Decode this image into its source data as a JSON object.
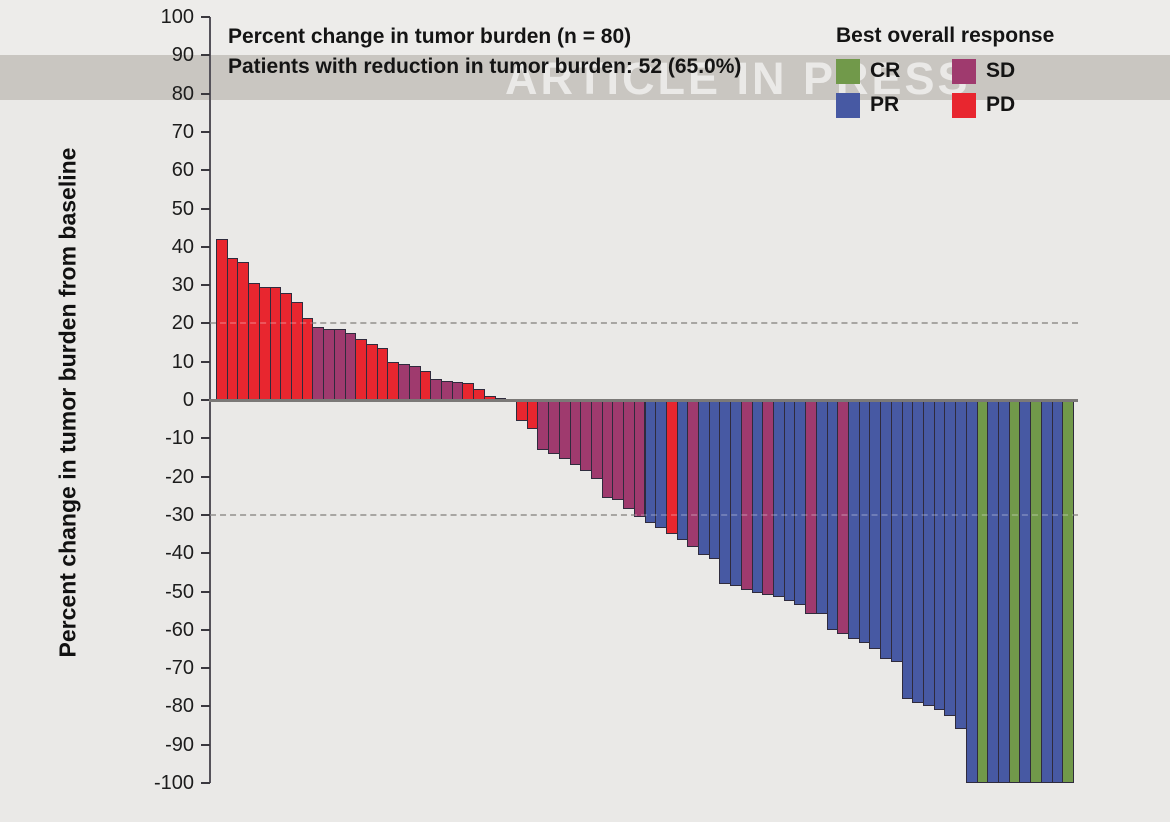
{
  "watermark": {
    "text": "ARTICLE IN PRESS"
  },
  "chart_data": {
    "type": "bar",
    "subtype": "waterfall",
    "title": "Percent change in tumor burden (n = 80)",
    "subtitle": "Patients with reduction in tumor burden: 52 (65.0%)",
    "ylabel": "Percent change in tumor burden from baseline",
    "ylim": [
      -100,
      100
    ],
    "yticks": [
      100,
      90,
      80,
      70,
      60,
      50,
      40,
      30,
      20,
      10,
      0,
      -10,
      -20,
      -30,
      -40,
      -50,
      -60,
      -70,
      -80,
      -90,
      -100
    ],
    "reference_lines": [
      20,
      -30
    ],
    "grid": false,
    "legend_title": "Best overall response",
    "legend_position": "top-right",
    "legend": [
      {
        "label": "CR",
        "color": "#71994a"
      },
      {
        "label": "PR",
        "color": "#4759a3"
      },
      {
        "label": "SD",
        "color": "#9f3a6e"
      },
      {
        "label": "PD",
        "color": "#e8262f"
      }
    ],
    "colors": {
      "CR": "#71994a",
      "PR": "#4759a3",
      "SD": "#9f3a6e",
      "PD": "#e8262f"
    },
    "bars": [
      {
        "v": 42,
        "r": "PD"
      },
      {
        "v": 37,
        "r": "PD"
      },
      {
        "v": 36,
        "r": "PD"
      },
      {
        "v": 30.5,
        "r": "PD"
      },
      {
        "v": 29.5,
        "r": "PD"
      },
      {
        "v": 29.5,
        "r": "PD"
      },
      {
        "v": 28,
        "r": "PD"
      },
      {
        "v": 25.5,
        "r": "PD"
      },
      {
        "v": 21.5,
        "r": "PD"
      },
      {
        "v": 19,
        "r": "SD"
      },
      {
        "v": 18.5,
        "r": "SD"
      },
      {
        "v": 18.5,
        "r": "SD"
      },
      {
        "v": 17.5,
        "r": "SD"
      },
      {
        "v": 16,
        "r": "PD"
      },
      {
        "v": 14.5,
        "r": "PD"
      },
      {
        "v": 13.5,
        "r": "PD"
      },
      {
        "v": 10,
        "r": "PD"
      },
      {
        "v": 9.5,
        "r": "SD"
      },
      {
        "v": 9,
        "r": "SD"
      },
      {
        "v": 7.5,
        "r": "PD"
      },
      {
        "v": 5.5,
        "r": "SD"
      },
      {
        "v": 5,
        "r": "SD"
      },
      {
        "v": 4.8,
        "r": "SD"
      },
      {
        "v": 4.5,
        "r": "PD"
      },
      {
        "v": 3,
        "r": "PD"
      },
      {
        "v": 1,
        "r": "PD"
      },
      {
        "v": 0.5,
        "r": "SD"
      },
      {
        "v": 0,
        "r": "SD"
      },
      {
        "v": -5.5,
        "r": "PD"
      },
      {
        "v": -7.5,
        "r": "PD"
      },
      {
        "v": -13,
        "r": "SD"
      },
      {
        "v": -14,
        "r": "SD"
      },
      {
        "v": -15.5,
        "r": "SD"
      },
      {
        "v": -17,
        "r": "SD"
      },
      {
        "v": -18.5,
        "r": "SD"
      },
      {
        "v": -20.5,
        "r": "SD"
      },
      {
        "v": -25.5,
        "r": "SD"
      },
      {
        "v": -26,
        "r": "SD"
      },
      {
        "v": -28.5,
        "r": "SD"
      },
      {
        "v": -30.5,
        "r": "SD"
      },
      {
        "v": -32,
        "r": "PR"
      },
      {
        "v": -33.5,
        "r": "PR"
      },
      {
        "v": -35,
        "r": "PD"
      },
      {
        "v": -36.5,
        "r": "PR"
      },
      {
        "v": -38.5,
        "r": "SD"
      },
      {
        "v": -40.5,
        "r": "PR"
      },
      {
        "v": -41.5,
        "r": "PR"
      },
      {
        "v": -48,
        "r": "PR"
      },
      {
        "v": -48.5,
        "r": "PR"
      },
      {
        "v": -49.5,
        "r": "SD"
      },
      {
        "v": -50.5,
        "r": "PR"
      },
      {
        "v": -51,
        "r": "SD"
      },
      {
        "v": -51.5,
        "r": "PR"
      },
      {
        "v": -52.5,
        "r": "PR"
      },
      {
        "v": -53.5,
        "r": "PR"
      },
      {
        "v": -56,
        "r": "SD"
      },
      {
        "v": -56,
        "r": "PR"
      },
      {
        "v": -60,
        "r": "PR"
      },
      {
        "v": -61,
        "r": "SD"
      },
      {
        "v": -62.5,
        "r": "PR"
      },
      {
        "v": -63.5,
        "r": "PR"
      },
      {
        "v": -65,
        "r": "PR"
      },
      {
        "v": -67.5,
        "r": "PR"
      },
      {
        "v": -68.5,
        "r": "PR"
      },
      {
        "v": -78,
        "r": "PR"
      },
      {
        "v": -79,
        "r": "PR"
      },
      {
        "v": -80,
        "r": "PR"
      },
      {
        "v": -81,
        "r": "PR"
      },
      {
        "v": -82.5,
        "r": "PR"
      },
      {
        "v": -86,
        "r": "PR"
      },
      {
        "v": -100,
        "r": "PR"
      },
      {
        "v": -100,
        "r": "CR"
      },
      {
        "v": -100,
        "r": "PR"
      },
      {
        "v": -100,
        "r": "PR"
      },
      {
        "v": -100,
        "r": "CR"
      },
      {
        "v": -100,
        "r": "PR"
      },
      {
        "v": -100,
        "r": "CR"
      },
      {
        "v": -100,
        "r": "PR"
      },
      {
        "v": -100,
        "r": "PR"
      },
      {
        "v": -100,
        "r": "CR"
      }
    ]
  }
}
